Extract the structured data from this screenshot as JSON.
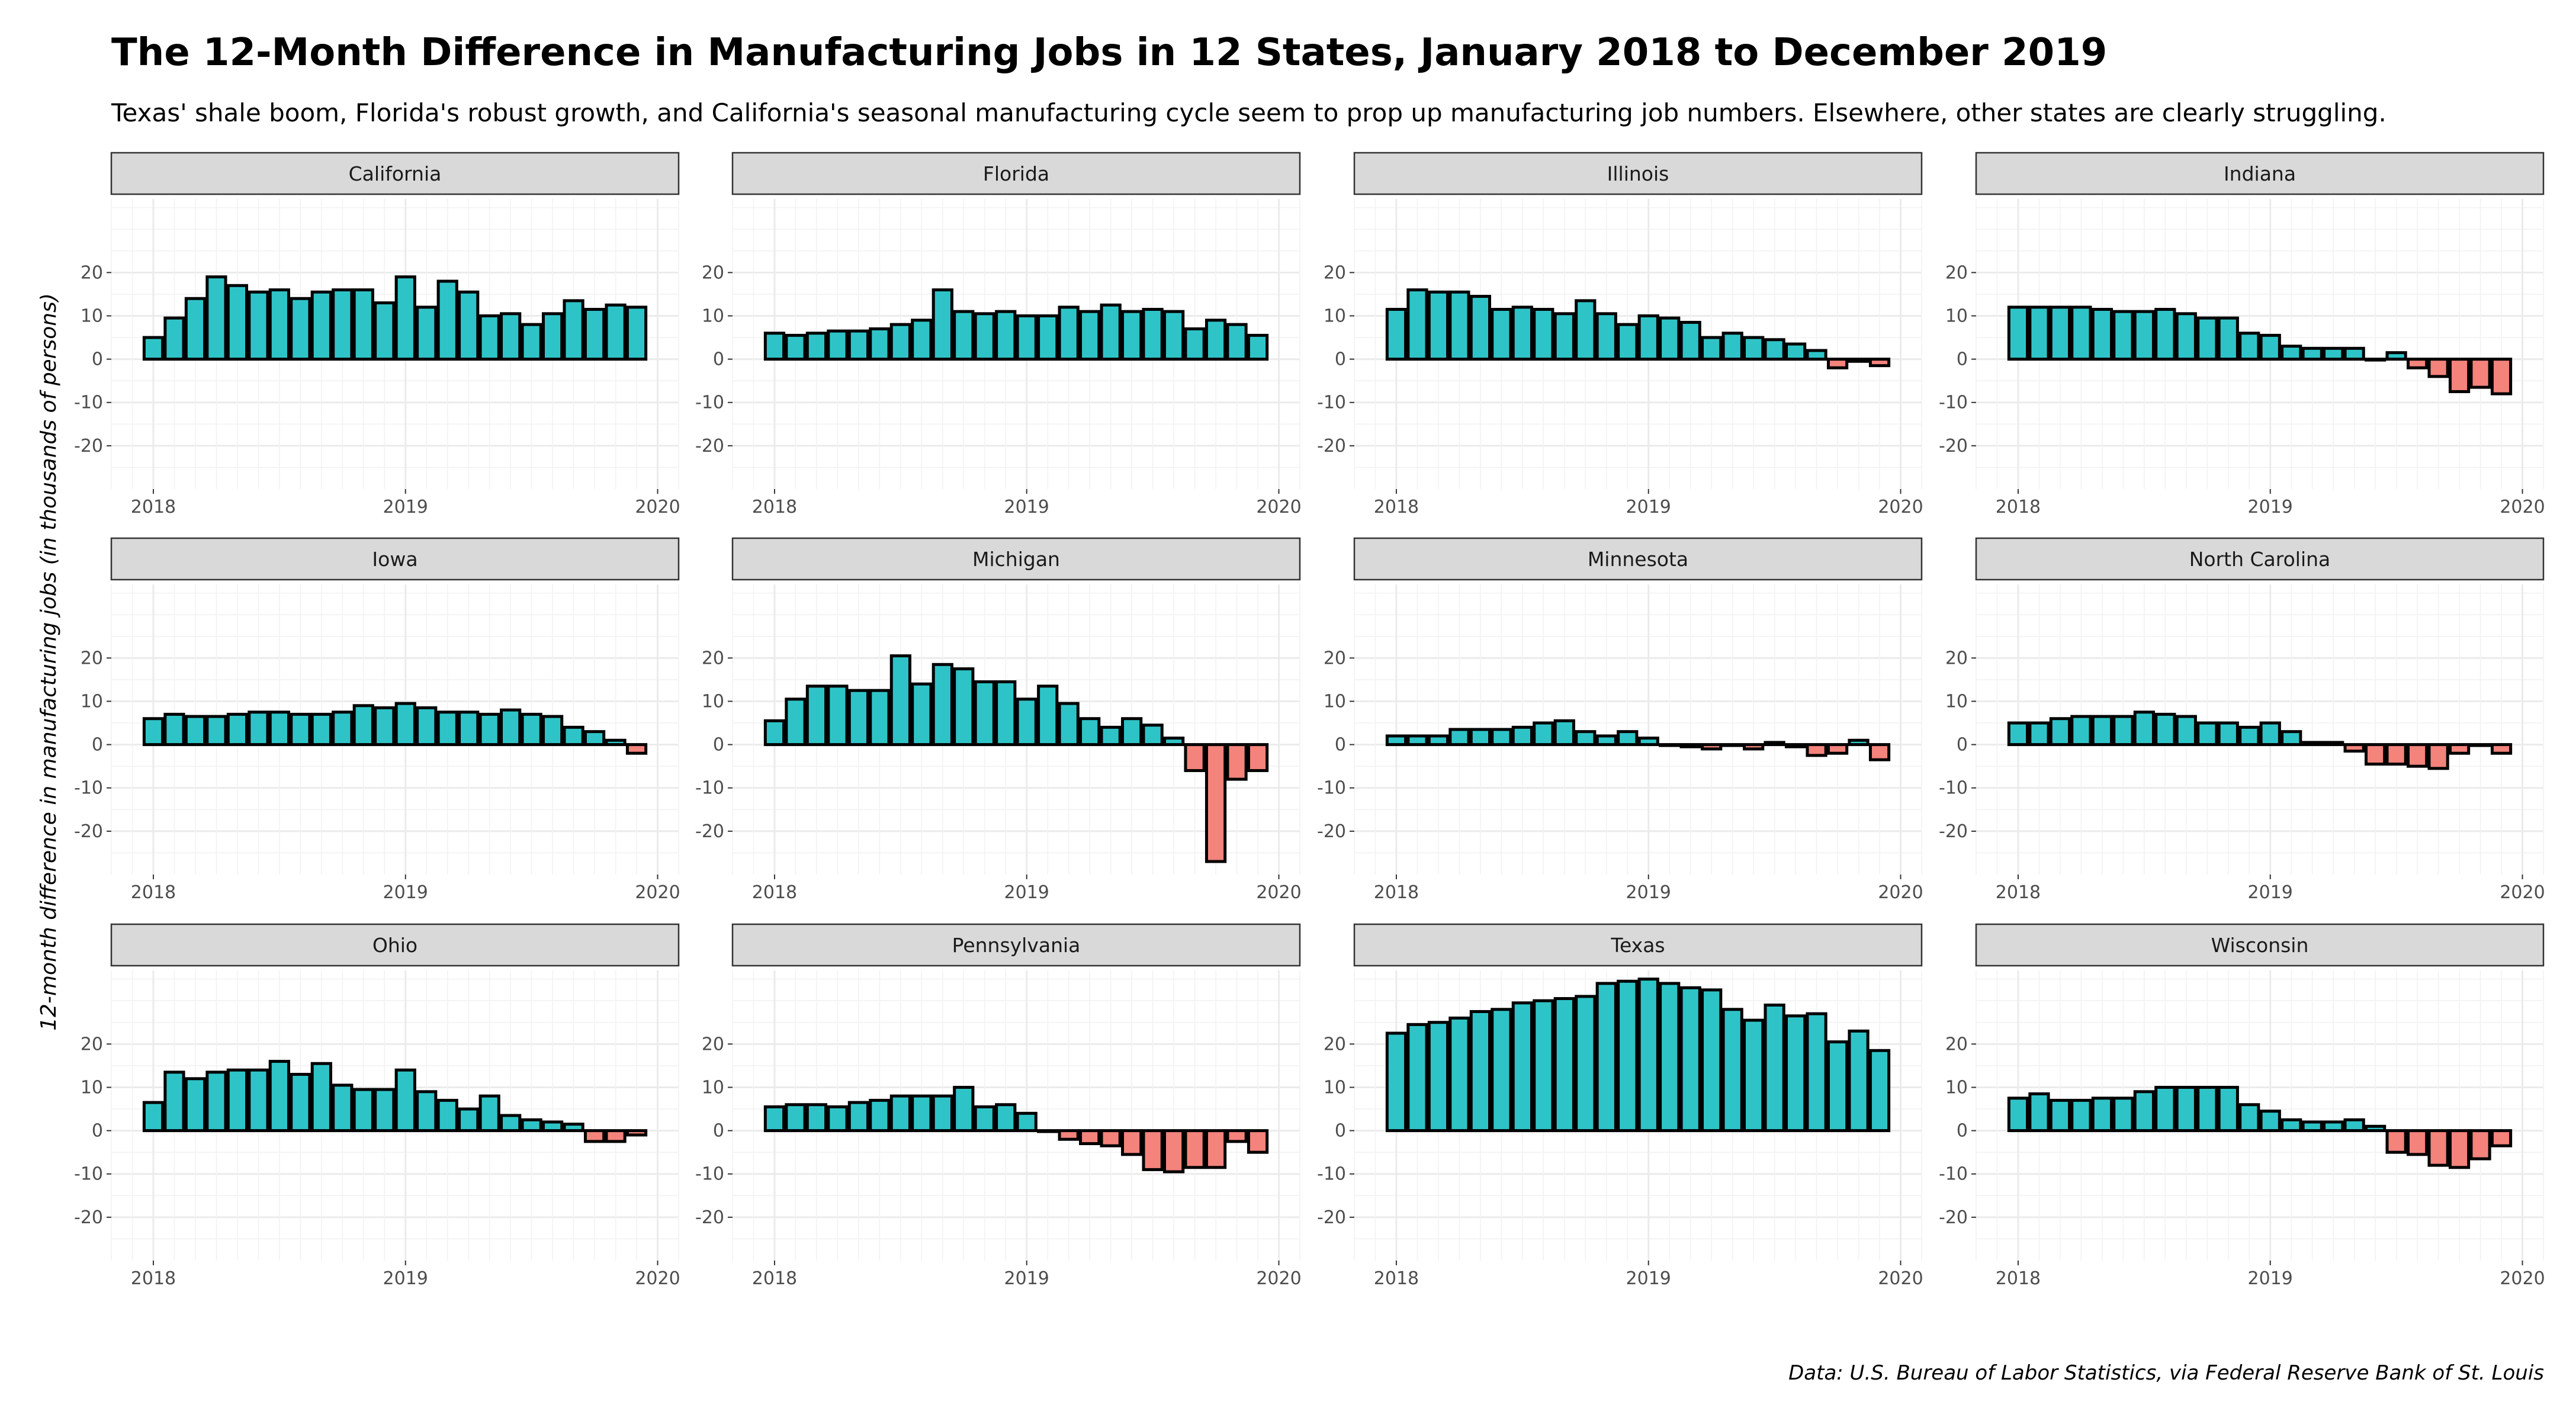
{
  "title": "The 12-Month Difference in Manufacturing Jobs in 12 States, January 2018 to December 2019",
  "subtitle": "Texas' shale boom, Florida's robust growth, and California's seasonal manufacturing cycle seem to prop up manufacturing job numbers. Elsewhere, other states are clearly struggling.",
  "caption": "Data: U.S. Bureau of Labor Statistics, via Federal Reserve Bank of St. Louis",
  "colors": {
    "positive": "#2ec4c7",
    "negative": "#f3837b",
    "bar_outline": "#000000",
    "strip": "#d9d9d9"
  },
  "chart_data": {
    "type": "bar",
    "facet": "state",
    "ylabel": "12-month difference in manufacturing jobs (in thousands of persons)",
    "xlabel": "",
    "x_ticks": [
      "2018",
      "2019",
      "2020"
    ],
    "y_ticks": [
      -20,
      -10,
      0,
      10,
      20
    ],
    "ylim": [
      -30,
      37
    ],
    "xlim": [
      "2017-11",
      "2020-02"
    ],
    "grid": true,
    "months": [
      "2018-01",
      "2018-02",
      "2018-03",
      "2018-04",
      "2018-05",
      "2018-06",
      "2018-07",
      "2018-08",
      "2018-09",
      "2018-10",
      "2018-11",
      "2018-12",
      "2019-01",
      "2019-02",
      "2019-03",
      "2019-04",
      "2019-05",
      "2019-06",
      "2019-07",
      "2019-08",
      "2019-09",
      "2019-10",
      "2019-11",
      "2019-12"
    ],
    "panels": [
      {
        "state": "California",
        "values": [
          5,
          9.5,
          14,
          19,
          17,
          15.5,
          16,
          14,
          15.5,
          16,
          16,
          13,
          19,
          12,
          18,
          15.5,
          10,
          10.5,
          8,
          10.5,
          13.5,
          11.5,
          12.5,
          12
        ]
      },
      {
        "state": "Florida",
        "values": [
          6,
          5.5,
          6,
          6.5,
          6.5,
          7,
          8,
          9,
          16,
          11,
          10.5,
          11,
          10,
          10,
          12,
          11,
          12.5,
          11,
          11.5,
          11,
          7,
          9,
          8,
          5.5
        ]
      },
      {
        "state": "Illinois",
        "values": [
          11.5,
          16,
          15.5,
          15.5,
          14.5,
          11.5,
          12,
          11.5,
          10.5,
          13.5,
          10.5,
          8,
          10,
          9.5,
          8.5,
          5,
          6,
          5,
          4.5,
          3.5,
          2,
          -2,
          -0.5,
          -1.5
        ]
      },
      {
        "state": "Indiana",
        "values": [
          12,
          12,
          12,
          12,
          11.5,
          11,
          11,
          11.5,
          10.5,
          9.5,
          9.5,
          6,
          5.5,
          3,
          2.5,
          2.5,
          2.5,
          0,
          1.5,
          -2,
          -4,
          -7.5,
          -6.5,
          -8
        ]
      },
      {
        "state": "Iowa",
        "values": [
          6,
          7,
          6.5,
          6.5,
          7,
          7.5,
          7.5,
          7,
          7,
          7.5,
          9,
          8.5,
          9.5,
          8.5,
          7.5,
          7.5,
          7,
          8,
          7,
          6.5,
          4,
          3,
          1,
          -2
        ]
      },
      {
        "state": "Michigan",
        "values": [
          5.5,
          10.5,
          13.5,
          13.5,
          12.5,
          12.5,
          20.5,
          14,
          18.5,
          17.5,
          14.5,
          14.5,
          10.5,
          13.5,
          9.5,
          6,
          4,
          6,
          4.5,
          1.5,
          -6,
          -27,
          -8,
          -6
        ]
      },
      {
        "state": "Minnesota",
        "values": [
          2,
          2,
          2,
          3.5,
          3.5,
          3.5,
          4,
          5,
          5.5,
          3,
          2,
          3,
          1.5,
          0,
          -0.5,
          -1,
          0,
          -1,
          0.5,
          -0.5,
          -2.5,
          -2,
          1,
          -3.5
        ]
      },
      {
        "state": "North Carolina",
        "values": [
          5,
          5,
          6,
          6.5,
          6.5,
          6.5,
          7.5,
          7,
          6.5,
          5,
          5,
          4,
          5,
          3,
          0.5,
          0.5,
          -1.5,
          -4.5,
          -4.5,
          -5,
          -5.5,
          -2,
          0,
          -2
        ]
      },
      {
        "state": "Ohio",
        "values": [
          6.5,
          13.5,
          12,
          13.5,
          14,
          14,
          16,
          13,
          15.5,
          10.5,
          9.5,
          9.5,
          14,
          9,
          7,
          5,
          8,
          3.5,
          2.5,
          2,
          1.5,
          -2.5,
          -2.5,
          -1
        ]
      },
      {
        "state": "Pennsylvania",
        "values": [
          5.5,
          6,
          6,
          5.5,
          6.5,
          7,
          8,
          8,
          8,
          10,
          5.5,
          6,
          4,
          0,
          -2,
          -3,
          -3.5,
          -5.5,
          -9,
          -9.5,
          -8.5,
          -8.5,
          -2.5,
          -5
        ]
      },
      {
        "state": "Texas",
        "values": [
          22.5,
          24.5,
          25,
          26,
          27.5,
          28,
          29.5,
          30,
          30.5,
          31,
          34,
          34.5,
          35,
          34,
          33,
          32.5,
          28,
          25.5,
          29,
          26.5,
          27,
          20.5,
          23,
          18.5
        ]
      },
      {
        "state": "Wisconsin",
        "values": [
          7.5,
          8.5,
          7,
          7,
          7.5,
          7.5,
          9,
          10,
          10,
          10,
          10,
          6,
          4.5,
          2.5,
          2,
          2,
          2.5,
          1,
          -5,
          -5.5,
          -8,
          -8.5,
          -6.5,
          -3.5
        ]
      }
    ]
  }
}
